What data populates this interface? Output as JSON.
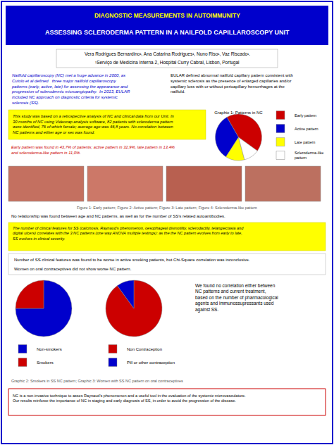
{
  "chart_data": [
    {
      "type": "pie",
      "title": "Graphic 1: Patterns in NC",
      "categories": [
        "Early pattern",
        "Active pattern",
        "Late pattern",
        "Scleroderma-like\npattern"
      ],
      "values": [
        43.7,
        32.9,
        13.4,
        11.0
      ],
      "colors": [
        "#CC0000",
        "#0000CC",
        "#FFFF00",
        "#FFFFFF"
      ],
      "legend": "right",
      "annotations": [
        "DIAGNOSTIC MEASUREMENTS IN AUTOIMMUNITY",
        "ASSESSING SCLERODERMA PATTERN IN A NAILFOLD CAPILLAROSCOPY UNIT",
        "Vera Rodrigues Bernardino¹, Ana Catarina Rodrigues¹, Nuno Riso¹, Vaz Riscado¹.",
        "¹Serviço de Medicina Interna 2, Hospital Curry Cabral, Lisbon, Portugal",
        "Nailfold capillaroscopy (NC) met a huge advance in 2000, as\nCutolo et al defined   three major nailfold capillaroscopy\npatterns (early, active, late) for assessing the appearance and\nprogression of sclerodermic microangiopathy.  In 2013, EULAR\nincluded NC approach on diagnostic criteria for systemic\nsclerosis (SS).",
        "EULAR defined abnormal nailfold capillary pattern consistent with\nsystemic sclerosis as the presence of enlarged capillaries and/or\ncapillary loss with or without pericapillary hemorrhages at the\nnailfold.",
        "This study was based on a retrospective analysis of NC and clinical data from our Unit. In\n30 months of NC using Videocap analysis software, 82 patients with scleroderma pattern\nwere identified, 76 of which female; average age was 46,8 years. No correlation between\nNC patterns and either age or sex was found.",
        "Early pattern was found in 43,7% of patients; active pattern in 32,9%, late pattern in 13,4%\nand scleroderma-like pattern in 11,0%.",
        "Figure 1: Early pattern; Figure 2: Active pattern; Figure 3: Late pattern; Figure 4: Scleroderma-like pattern",
        "No relationship was found between age and NC patterns, as well as for the number of SS's related autoantibodies.",
        "The number of clinical features for SS (calcinosis, Raynaud's phenomenon, oesophageal dismotility, sclerodactily, telangiectasia and\ndigital ulcers) correlates with the 3 NC patterns (one way ANOVA multiple testings): as the the NC pattern evolves from early to late,\nSS evolves in clinical severity.",
        "Number of SS clinical features was found to be worse in active smoking patients, but Chi-Square correlation was inconclusive.",
        "Women on oral contraceptives did not show worse NC pattern.",
        "We found no correlation either between\nNC patterns and current treatment,\nbased on the number of pharmacological\nagents and immunossupressants used\nagainst SS.",
        "NC is a non-invasive technique to asses Raynaud's phenomenon and a useful tool in the evaluation of the systemic microvasculature.\nOur results reinforce the importance of NC in staging and early diagnosis of SS, in order to avoid the progression of the disease."
      ]
    },
    {
      "type": "pie",
      "categories": [
        "Non-smokers",
        "Smokers"
      ],
      "values": [
        75,
        25
      ],
      "colors": [
        "#0000CC",
        "#CC0000"
      ],
      "legend": "bottom",
      "annotations": [
        "Graphic 2: Smokers in SS NC pattern; Graphic 3: Women with SS NC pattern on oral contraceptives"
      ]
    },
    {
      "type": "pie",
      "categories": [
        "Non Contraception",
        "Pill or other contraception"
      ],
      "values": [
        90,
        10
      ],
      "colors": [
        "#CC0000",
        "#0000CC"
      ],
      "legend": "bottom"
    }
  ]
}
